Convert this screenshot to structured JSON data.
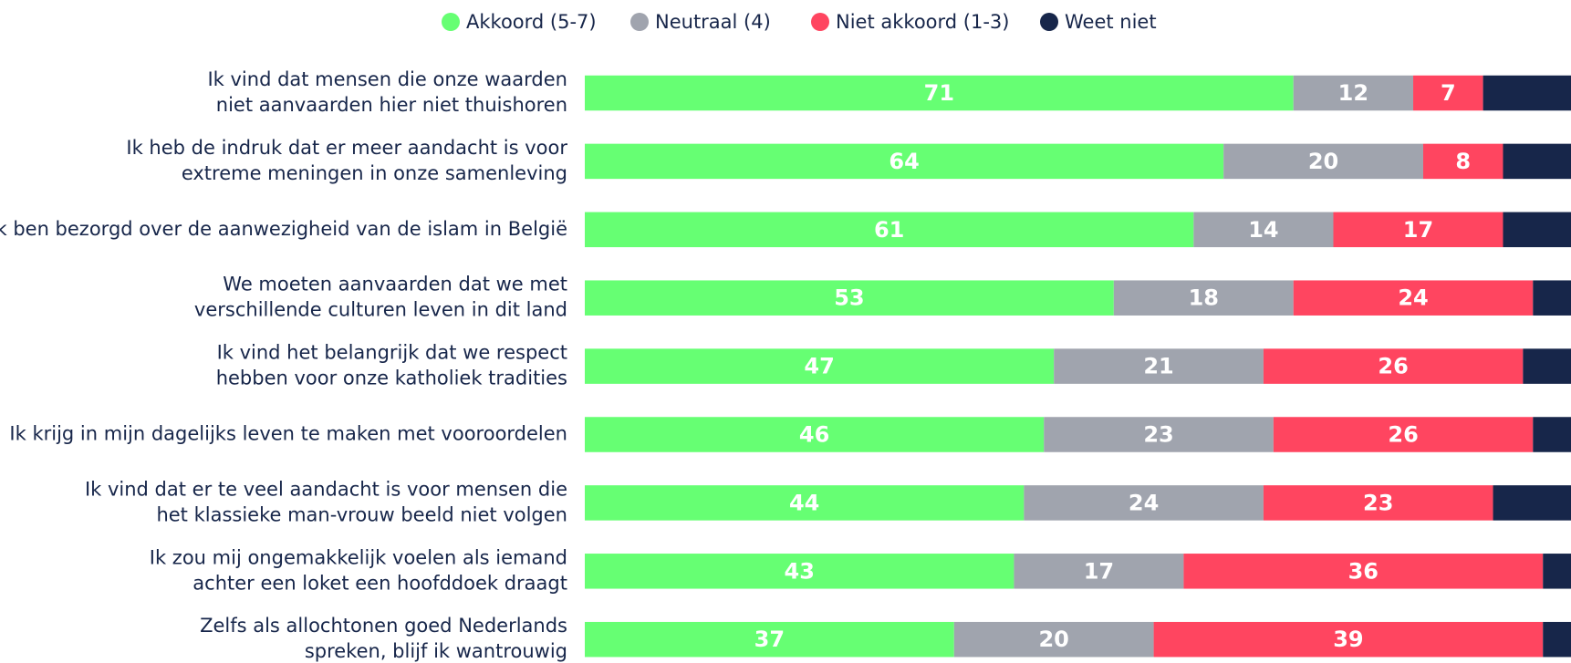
{
  "chart_data": {
    "type": "stacked-bar-horizontal",
    "categories": [
      [
        "Ik vind dat mensen die onze waarden",
        "niet aanvaarden hier niet thuishoren"
      ],
      [
        "Ik heb de indruk dat er meer aandacht is voor",
        "extreme meningen in onze samenleving"
      ],
      [
        "Ik ben bezorgd over de aanwezigheid van de islam in België"
      ],
      [
        "We moeten aanvaarden dat we met",
        "verschillende culturen leven in dit land"
      ],
      [
        "Ik vind het belangrijk dat we respect",
        "hebben voor onze katholiek tradities"
      ],
      [
        "Ik krijg in mijn dagelijks leven te maken met vooroordelen"
      ],
      [
        "Ik vind dat er te veel aandacht is voor mensen die",
        "het klassieke man-vrouw beeld niet volgen"
      ],
      [
        "Ik zou mij ongemakkelijk voelen als iemand",
        "achter een loket een hoofddoek draagt"
      ],
      [
        "Zelfs als allochtonen goed Nederlands",
        "spreken, blijf ik wantrouwig"
      ]
    ],
    "series": [
      {
        "name": "Akkoord (5-7)",
        "color": "#66ff73",
        "values": [
          71,
          64,
          61,
          53,
          47,
          46,
          44,
          43,
          37
        ],
        "labels": true
      },
      {
        "name": "Neutraal (4)",
        "color": "#a0a4ae",
        "values": [
          12,
          20,
          14,
          18,
          21,
          23,
          24,
          17,
          20
        ],
        "labels": true
      },
      {
        "name": "Niet akkoord (1-3)",
        "color": "#ff4560",
        "values": [
          7,
          8,
          17,
          24,
          26,
          26,
          23,
          36,
          39
        ],
        "labels": true
      },
      {
        "name": "Weet niet",
        "color": "#17264a",
        "values": [
          10,
          8,
          8,
          5,
          6,
          5,
          9,
          4,
          4
        ],
        "labels": false
      }
    ],
    "xlim": [
      0,
      100
    ],
    "legend": "top"
  }
}
